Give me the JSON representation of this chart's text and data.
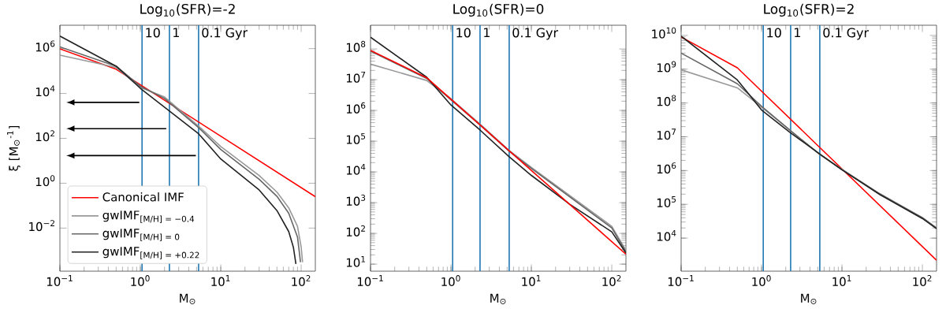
{
  "chart_data": [
    {
      "type": "line",
      "title": "Log$_{10}$(SFR)=-2",
      "xlabel": "M$_{⊙}$",
      "ylabel": "ξ [M$_{⊙}$$^{-1}$]",
      "log": "xy",
      "legend": "bottom left",
      "annotations": [
        "10",
        "1",
        "0.1 Gyr"
      ],
      "xlim": [
        0.1,
        150
      ],
      "ylim": [
        0.00012,
        11000000
      ],
      "xticks": [
        {
          "value": 0.1,
          "label": "10$^{−1}$"
        },
        {
          "value": 1,
          "label": "10$^{0}$"
        },
        {
          "value": 10,
          "label": "10$^{1}$"
        },
        {
          "value": 100,
          "label": "10$^{2}$"
        }
      ],
      "yticks": [
        {
          "value": 0.01,
          "label": "10$^{−2}$"
        },
        {
          "value": 1,
          "label": "10$^{0}$"
        },
        {
          "value": 100,
          "label": "10$^{2}$"
        },
        {
          "value": 10000,
          "label": "10$^{4}$"
        },
        {
          "value": 1000000,
          "label": "10$^{6}$"
        }
      ],
      "ref_lines": [
        {
          "axis": "x",
          "value": 1.05,
          "color": "#1f77b4"
        },
        {
          "axis": "x",
          "value": 2.3,
          "color": "#1f77b4"
        },
        {
          "axis": "x",
          "value": 5.3,
          "color": "#1f77b4"
        }
      ],
      "series": [
        {
          "name": "Canonical IMF",
          "color": "#ff0000",
          "x": [
            0.1,
            0.5,
            150
          ],
          "values": [
            980000,
            120000,
            0.25
          ]
        },
        {
          "name": "gwIMF$_{[M/H] = −0.4}$",
          "color": "#999999",
          "x": [
            0.1,
            0.5,
            1,
            2,
            5.3,
            10,
            30,
            50,
            70,
            90,
            100,
            104
          ],
          "values": [
            510000,
            145000,
            19000,
            7000,
            350,
            43,
            2.2,
            0.4,
            0.08,
            0.012,
            0.0014,
            0.0003
          ]
        },
        {
          "name": "gwIMF$_{[M/H] = 0}$",
          "color": "#666666",
          "x": [
            0.1,
            0.5,
            1,
            2,
            5.3,
            10,
            30,
            50,
            70,
            90,
            95,
            98
          ],
          "values": [
            1200000,
            165000,
            21000,
            6000,
            300,
            32,
            1.5,
            0.26,
            0.046,
            0.004,
            0.0008,
            0.0003
          ]
        },
        {
          "name": "gwIMF$_{[M/H] = +0.22}$",
          "color": "#222222",
          "x": [
            0.1,
            0.5,
            1,
            5.3,
            10,
            30,
            50,
            70,
            80,
            86
          ],
          "values": [
            3600000,
            165000,
            17000,
            160,
            12,
            0.5,
            0.06,
            0.007,
            0.0014,
            0.00025
          ]
        }
      ]
    },
    {
      "type": "line",
      "title": "Log$_{10}$(SFR)=0",
      "xlabel": "M$_{⊙}$",
      "log": "xy",
      "annotations": [
        "10",
        "1",
        "0.1 Gyr"
      ],
      "xlim": [
        0.1,
        150
      ],
      "ylim": [
        5.9,
        590000000
      ],
      "xticks": [
        {
          "value": 0.1,
          "label": "10$^{−1}$"
        },
        {
          "value": 1,
          "label": "10$^{0}$"
        },
        {
          "value": 10,
          "label": "10$^{1}$"
        },
        {
          "value": 100,
          "label": "10$^{2}$"
        }
      ],
      "yticks": [
        {
          "value": 10,
          "label": "10$^{1}$"
        },
        {
          "value": 100,
          "label": "10$^{2}$"
        },
        {
          "value": 1000,
          "label": "10$^{3}$"
        },
        {
          "value": 10000,
          "label": "10$^{4}$"
        },
        {
          "value": 100000,
          "label": "10$^{5}$"
        },
        {
          "value": 1000000,
          "label": "10$^{6}$"
        },
        {
          "value": 10000000,
          "label": "10$^{7}$"
        },
        {
          "value": 100000000,
          "label": "10$^{8}$"
        }
      ],
      "ref_lines": [
        {
          "axis": "x",
          "value": 1.05,
          "color": "#1f77b4"
        },
        {
          "axis": "x",
          "value": 2.3,
          "color": "#1f77b4"
        },
        {
          "axis": "x",
          "value": 5.3,
          "color": "#1f77b4"
        }
      ],
      "series": [
        {
          "color": "#999999",
          "x": [
            0.1,
            0.5,
            1,
            2.3,
            5.3,
            10,
            100,
            150
          ],
          "values": [
            32000000,
            9400000,
            2400000,
            360000,
            50000,
            14000,
            170,
            28
          ]
        },
        {
          "color": "#666666",
          "x": [
            0.1,
            0.5,
            1,
            2.3,
            5.3,
            10,
            100,
            150
          ],
          "values": [
            85000000,
            11000000,
            2200000,
            340000,
            47000,
            13000,
            150,
            25
          ]
        },
        {
          "color": "#222222",
          "x": [
            0.1,
            0.5,
            1,
            2.3,
            5.3,
            10,
            30,
            100,
            150
          ],
          "values": [
            240000000,
            12000000,
            1500000,
            230000,
            31000,
            7700,
            890,
            112,
            23
          ]
        },
        {
          "color": "#ff0000",
          "x": [
            0.1,
            0.5,
            150
          ],
          "values": [
            90000000,
            11500000,
            21
          ]
        }
      ]
    },
    {
      "type": "line",
      "title": "Log$_{10}$(SFR)=2",
      "xlabel": "M$_{⊙}$",
      "log": "xy",
      "annotations": [
        "10",
        "1",
        "0.1 Gyr"
      ],
      "xlim": [
        0.1,
        150
      ],
      "ylim": [
        1050,
        20000000000
      ],
      "xticks": [
        {
          "value": 0.1,
          "label": "10$^{−1}$"
        },
        {
          "value": 1,
          "label": "10$^{0}$"
        },
        {
          "value": 10,
          "label": "10$^{1}$"
        },
        {
          "value": 100,
          "label": "10$^{2}$"
        }
      ],
      "yticks": [
        {
          "value": 10000,
          "label": "10$^{4}$"
        },
        {
          "value": 100000,
          "label": "10$^{5}$"
        },
        {
          "value": 1000000,
          "label": "10$^{6}$"
        },
        {
          "value": 10000000,
          "label": "10$^{7}$"
        },
        {
          "value": 100000000,
          "label": "10$^{8}$"
        },
        {
          "value": 1000000000,
          "label": "10$^{9}$"
        },
        {
          "value": 10000000000,
          "label": "10$^{10}$"
        }
      ],
      "ref_lines": [
        {
          "axis": "x",
          "value": 1.05,
          "color": "#1f77b4"
        },
        {
          "axis": "x",
          "value": 2.3,
          "color": "#1f77b4"
        },
        {
          "axis": "x",
          "value": 5.3,
          "color": "#1f77b4"
        }
      ],
      "series": [
        {
          "color": "#ff0000",
          "x": [
            0.1,
            0.5,
            150
          ],
          "values": [
            9000000000,
            1100000000,
            2200
          ]
        },
        {
          "color": "#999999",
          "x": [
            0.1,
            0.5,
            1,
            2.3,
            5.3,
            10,
            30,
            100,
            150
          ],
          "values": [
            960000000,
            280000000,
            75000000,
            15000000,
            3000000,
            1100000,
            200000,
            40000,
            20000
          ]
        },
        {
          "color": "#666666",
          "x": [
            0.1,
            0.5,
            1,
            2.3,
            5.3,
            10,
            30,
            100,
            150
          ],
          "values": [
            3000000000,
            370000000,
            80000000,
            15000000,
            3000000,
            1050000,
            200000,
            40000,
            20000
          ]
        },
        {
          "color": "#222222",
          "x": [
            0.1,
            0.5,
            0.7,
            1,
            2.3,
            5.3,
            10,
            30,
            100,
            150
          ],
          "values": [
            9500000000,
            480000000,
            180000000,
            62000000,
            13000000,
            3100000,
            1050000,
            190000,
            38000,
            19000
          ]
        }
      ]
    }
  ]
}
